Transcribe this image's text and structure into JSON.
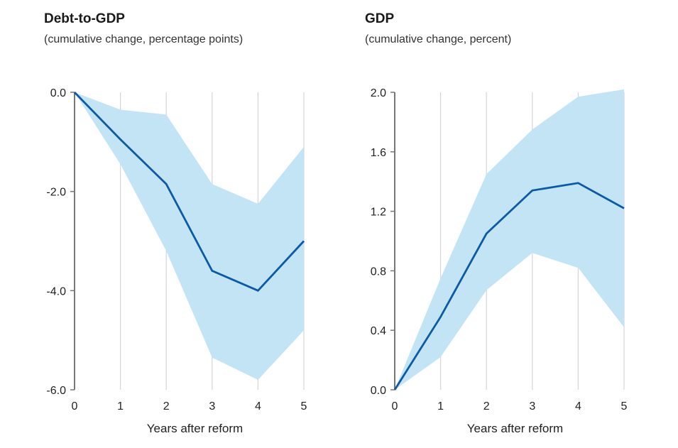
{
  "chart_data": [
    {
      "type": "line",
      "title": "Debt-to-GDP",
      "subtitle": "(cumulative change, percentage points)",
      "xlabel": "Years after reform",
      "ylabel": "",
      "x": [
        0,
        1,
        2,
        3,
        4,
        5
      ],
      "xlim": [
        0,
        5
      ],
      "ylim": [
        -6.0,
        0.0
      ],
      "yticks": [
        0.0,
        -2.0,
        -4.0,
        -6.0
      ],
      "ytick_labels": [
        "0.0",
        "-2.0",
        "-4.0",
        "-6.0"
      ],
      "xtick_labels": [
        "0",
        "1",
        "2",
        "3",
        "4",
        "5"
      ],
      "grid": "vertical",
      "line_color": "#0b5aa6",
      "band_color": "#c2e4f4",
      "series": [
        {
          "values": [
            0.0,
            -0.95,
            -1.85,
            -3.6,
            -4.0,
            -3.0
          ],
          "band_upper": [
            0.0,
            -0.35,
            -0.45,
            -1.85,
            -2.25,
            -1.1
          ],
          "band_lower": [
            0.0,
            -1.45,
            -3.2,
            -5.35,
            -5.8,
            -4.8
          ]
        }
      ]
    },
    {
      "type": "line",
      "title": "GDP",
      "subtitle": "(cumulative change, percent)",
      "xlabel": "Years after reform",
      "ylabel": "",
      "x": [
        0,
        1,
        2,
        3,
        4,
        5
      ],
      "xlim": [
        0,
        5
      ],
      "ylim": [
        0.0,
        2.0
      ],
      "yticks": [
        0.0,
        0.4,
        0.8,
        1.2,
        1.6,
        2.0
      ],
      "ytick_labels": [
        "0.0",
        "0.4",
        "0.8",
        "1.2",
        "1.6",
        "2.0"
      ],
      "xtick_labels": [
        "0",
        "1",
        "2",
        "3",
        "4",
        "5"
      ],
      "grid": "vertical",
      "line_color": "#0b5aa6",
      "band_color": "#c2e4f4",
      "series": [
        {
          "values": [
            0.0,
            0.49,
            1.05,
            1.34,
            1.39,
            1.22
          ],
          "band_upper": [
            0.0,
            0.75,
            1.45,
            1.75,
            1.97,
            2.02
          ],
          "band_lower": [
            0.0,
            0.22,
            0.67,
            0.92,
            0.82,
            0.42
          ]
        }
      ]
    }
  ]
}
